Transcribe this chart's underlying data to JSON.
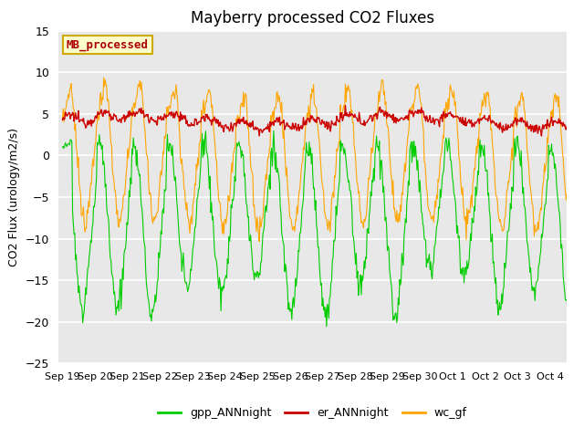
{
  "title": "Mayberry processed CO2 Fluxes",
  "ylabel": "CO2 Flux (urology/m2/s)",
  "ylim": [
    -25,
    15
  ],
  "yticks": [
    -25,
    -20,
    -15,
    -10,
    -5,
    0,
    5,
    10,
    15
  ],
  "bg_color": "#e8e8e8",
  "fig_color": "#ffffff",
  "grid_color": "#ffffff",
  "line_green": "#00cc00",
  "line_red": "#cc0000",
  "line_orange": "#ffa500",
  "label_box_color": "#ffffcc",
  "label_box_edge": "#ccaa00",
  "label_text": "MB_processed",
  "label_text_color": "#aa0000",
  "legend_labels": [
    "gpp_ANNnight",
    "er_ANNnight",
    "wc_gf"
  ],
  "n_points": 720
}
